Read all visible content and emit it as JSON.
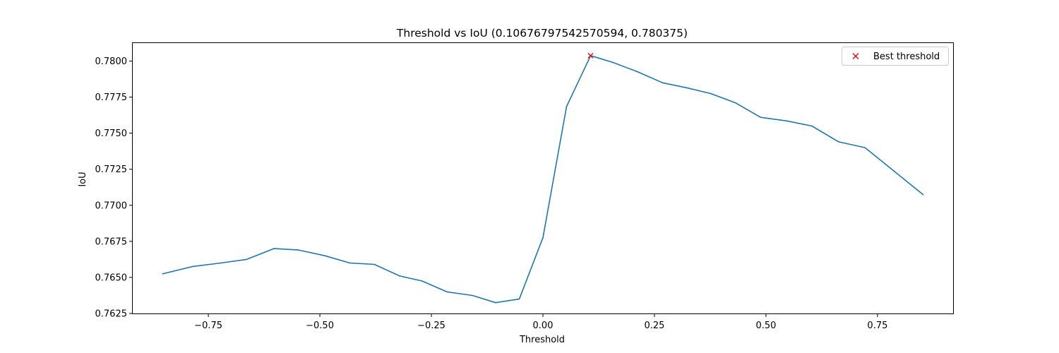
{
  "chart_data": {
    "type": "line",
    "title": "Threshold vs IoU (0.10676797542570594, 0.780375)",
    "xlabel": "Threshold",
    "ylabel": "IoU",
    "xlim": [
      -0.9195,
      0.9195
    ],
    "ylim": [
      0.7625,
      0.78125
    ],
    "xticks": [
      -0.75,
      -0.5,
      -0.25,
      0.0,
      0.25,
      0.5,
      0.75
    ],
    "xtick_labels": [
      "−0.75",
      "−0.50",
      "−0.25",
      "0.00",
      "0.25",
      "0.50",
      "0.75"
    ],
    "yticks": [
      0.7625,
      0.765,
      0.7675,
      0.77,
      0.7725,
      0.775,
      0.7775,
      0.78
    ],
    "ytick_labels": [
      "0.7625",
      "0.7650",
      "0.7675",
      "0.7700",
      "0.7725",
      "0.7750",
      "0.7775",
      "0.7800"
    ],
    "grid": false,
    "legend_position": "top-right",
    "series": [
      {
        "name": "IoU",
        "color": "#1f77b4",
        "x": [
          -0.852,
          -0.786,
          -0.722,
          -0.664,
          -0.603,
          -0.548,
          -0.488,
          -0.433,
          -0.378,
          -0.321,
          -0.271,
          -0.215,
          -0.158,
          -0.106,
          -0.053,
          0.0,
          0.053,
          0.107,
          0.158,
          0.213,
          0.268,
          0.322,
          0.376,
          0.432,
          0.488,
          0.547,
          0.603,
          0.663,
          0.722,
          0.786,
          0.852
        ],
        "y": [
          0.76525,
          0.76575,
          0.766,
          0.76625,
          0.767,
          0.7669,
          0.7665,
          0.766,
          0.7659,
          0.7651,
          0.76475,
          0.764,
          0.76375,
          0.76325,
          0.7635,
          0.76775,
          0.77685,
          0.78038,
          0.7799,
          0.77925,
          0.7785,
          0.77815,
          0.77775,
          0.7771,
          0.7761,
          0.77585,
          0.7755,
          0.7744,
          0.774,
          0.7724,
          0.77075
        ]
      }
    ],
    "best_point": {
      "name": "Best threshold",
      "x": 0.10676797542570594,
      "y": 0.780375,
      "color": "#ff0000",
      "marker": "x"
    }
  }
}
